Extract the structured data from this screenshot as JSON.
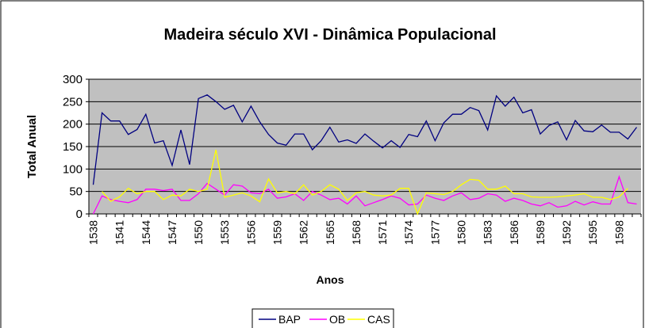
{
  "chart_data": {
    "type": "line",
    "title": "Madeira século XVI - Dinâmica Populacional",
    "x_label": "Anos",
    "y_label": "Total Anual",
    "categories": [
      "1538",
      null,
      null,
      "1541",
      null,
      null,
      "1544",
      null,
      null,
      "1547",
      null,
      null,
      "1550",
      null,
      null,
      "1553",
      null,
      null,
      "1556",
      null,
      null,
      "1559",
      null,
      null,
      "1562",
      null,
      null,
      "1565",
      null,
      null,
      "1568",
      null,
      null,
      "1571",
      null,
      null,
      "1574",
      null,
      null,
      "1577",
      null,
      null,
      "1580",
      null,
      null,
      "1583",
      null,
      null,
      "1586",
      null,
      null,
      "1589",
      null,
      null,
      "1592",
      null,
      null,
      "1595",
      null,
      null,
      "1598",
      null,
      null
    ],
    "series": [
      {
        "name": "BAP",
        "color": "#000080",
        "values": [
          65,
          225,
          207,
          207,
          177,
          188,
          222,
          158,
          163,
          108,
          187,
          110,
          257,
          265,
          250,
          233,
          242,
          205,
          240,
          205,
          177,
          158,
          153,
          178,
          178,
          143,
          163,
          193,
          160,
          165,
          157,
          178,
          162,
          147,
          163,
          148,
          177,
          172,
          207,
          163,
          203,
          222,
          222,
          237,
          230,
          187,
          263,
          240,
          260,
          225,
          232,
          178,
          197,
          205,
          165,
          208,
          185,
          183,
          198,
          182,
          182,
          167,
          193
        ]
      },
      {
        "name": "OB",
        "color": "#ff00ff",
        "values": [
          0,
          40,
          32,
          28,
          25,
          32,
          55,
          55,
          52,
          55,
          30,
          30,
          45,
          68,
          55,
          42,
          65,
          62,
          47,
          45,
          55,
          35,
          38,
          45,
          30,
          50,
          42,
          32,
          35,
          22,
          40,
          18,
          25,
          32,
          40,
          35,
          20,
          22,
          42,
          35,
          30,
          40,
          47,
          32,
          35,
          45,
          42,
          28,
          35,
          30,
          22,
          18,
          25,
          15,
          18,
          28,
          20,
          27,
          22,
          22,
          83,
          25,
          22
        ]
      },
      {
        "name": "CAS",
        "color": "#ffff00",
        "values": [
          null,
          50,
          28,
          38,
          57,
          45,
          50,
          50,
          32,
          42,
          40,
          55,
          50,
          55,
          143,
          37,
          42,
          47,
          40,
          27,
          78,
          47,
          50,
          45,
          65,
          42,
          50,
          65,
          55,
          30,
          47,
          50,
          42,
          40,
          42,
          57,
          57,
          0,
          47,
          45,
          43,
          50,
          65,
          77,
          75,
          55,
          55,
          62,
          45,
          45,
          38,
          37,
          37,
          38,
          40,
          42,
          45,
          37,
          37,
          32,
          38,
          57,
          null
        ]
      }
    ],
    "ylim": [
      0,
      300
    ],
    "yticks": [
      0,
      50,
      100,
      150,
      200,
      250,
      300
    ],
    "grid": true,
    "legend": "bottom"
  }
}
